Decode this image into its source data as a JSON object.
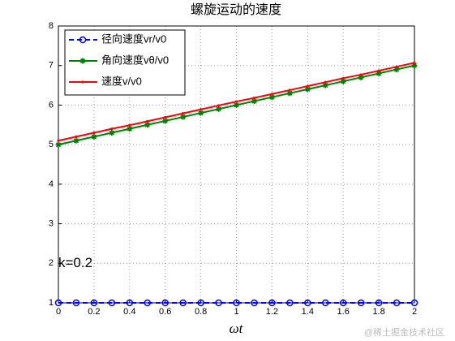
{
  "chart_data": {
    "type": "line",
    "title": "螺旋运动的速度",
    "x_label": "ωt",
    "annotation": {
      "text": "k=0.2",
      "x": 0,
      "y": 2
    },
    "x": [
      0,
      0.1,
      0.2,
      0.3,
      0.4,
      0.5,
      0.6,
      0.7,
      0.8,
      0.9,
      1,
      1.1,
      1.2,
      1.3,
      1.4,
      1.5,
      1.6,
      1.7,
      1.8,
      1.9,
      2
    ],
    "series": [
      {
        "name": "径向速度vr/v0",
        "color": "#0000ff",
        "marker": "circle",
        "dash": true,
        "values": [
          1,
          1,
          1,
          1,
          1,
          1,
          1,
          1,
          1,
          1,
          1,
          1,
          1,
          1,
          1,
          1,
          1,
          1,
          1,
          1,
          1
        ]
      },
      {
        "name": "角向速度vθ/v0",
        "color": "#008000",
        "marker": "star",
        "dash": false,
        "values": [
          5,
          5.1,
          5.2,
          5.3,
          5.4,
          5.5,
          5.6,
          5.7,
          5.8,
          5.9,
          6,
          6.1,
          6.2,
          6.3,
          6.4,
          6.5,
          6.6,
          6.7,
          6.8,
          6.9,
          7
        ]
      },
      {
        "name": "速度v/v0",
        "color": "#ff0000",
        "marker": "dot",
        "dash": false,
        "values": [
          5.1,
          5.2,
          5.3,
          5.4,
          5.49,
          5.59,
          5.69,
          5.79,
          5.89,
          5.99,
          6.09,
          6.18,
          6.28,
          6.38,
          6.48,
          6.58,
          6.68,
          6.77,
          6.87,
          6.97,
          7.07
        ]
      }
    ],
    "xlim": [
      0,
      2
    ],
    "xticks": [
      0,
      0.2,
      0.4,
      0.6,
      0.8,
      1,
      1.2,
      1.4,
      1.6,
      1.8,
      2
    ],
    "ylim": [
      1,
      8
    ],
    "yticks": [
      1,
      2,
      3,
      4,
      5,
      6,
      7,
      8
    ],
    "grid": true,
    "legend": "upper-left"
  },
  "watermark": "@稀土掘金技术社区"
}
